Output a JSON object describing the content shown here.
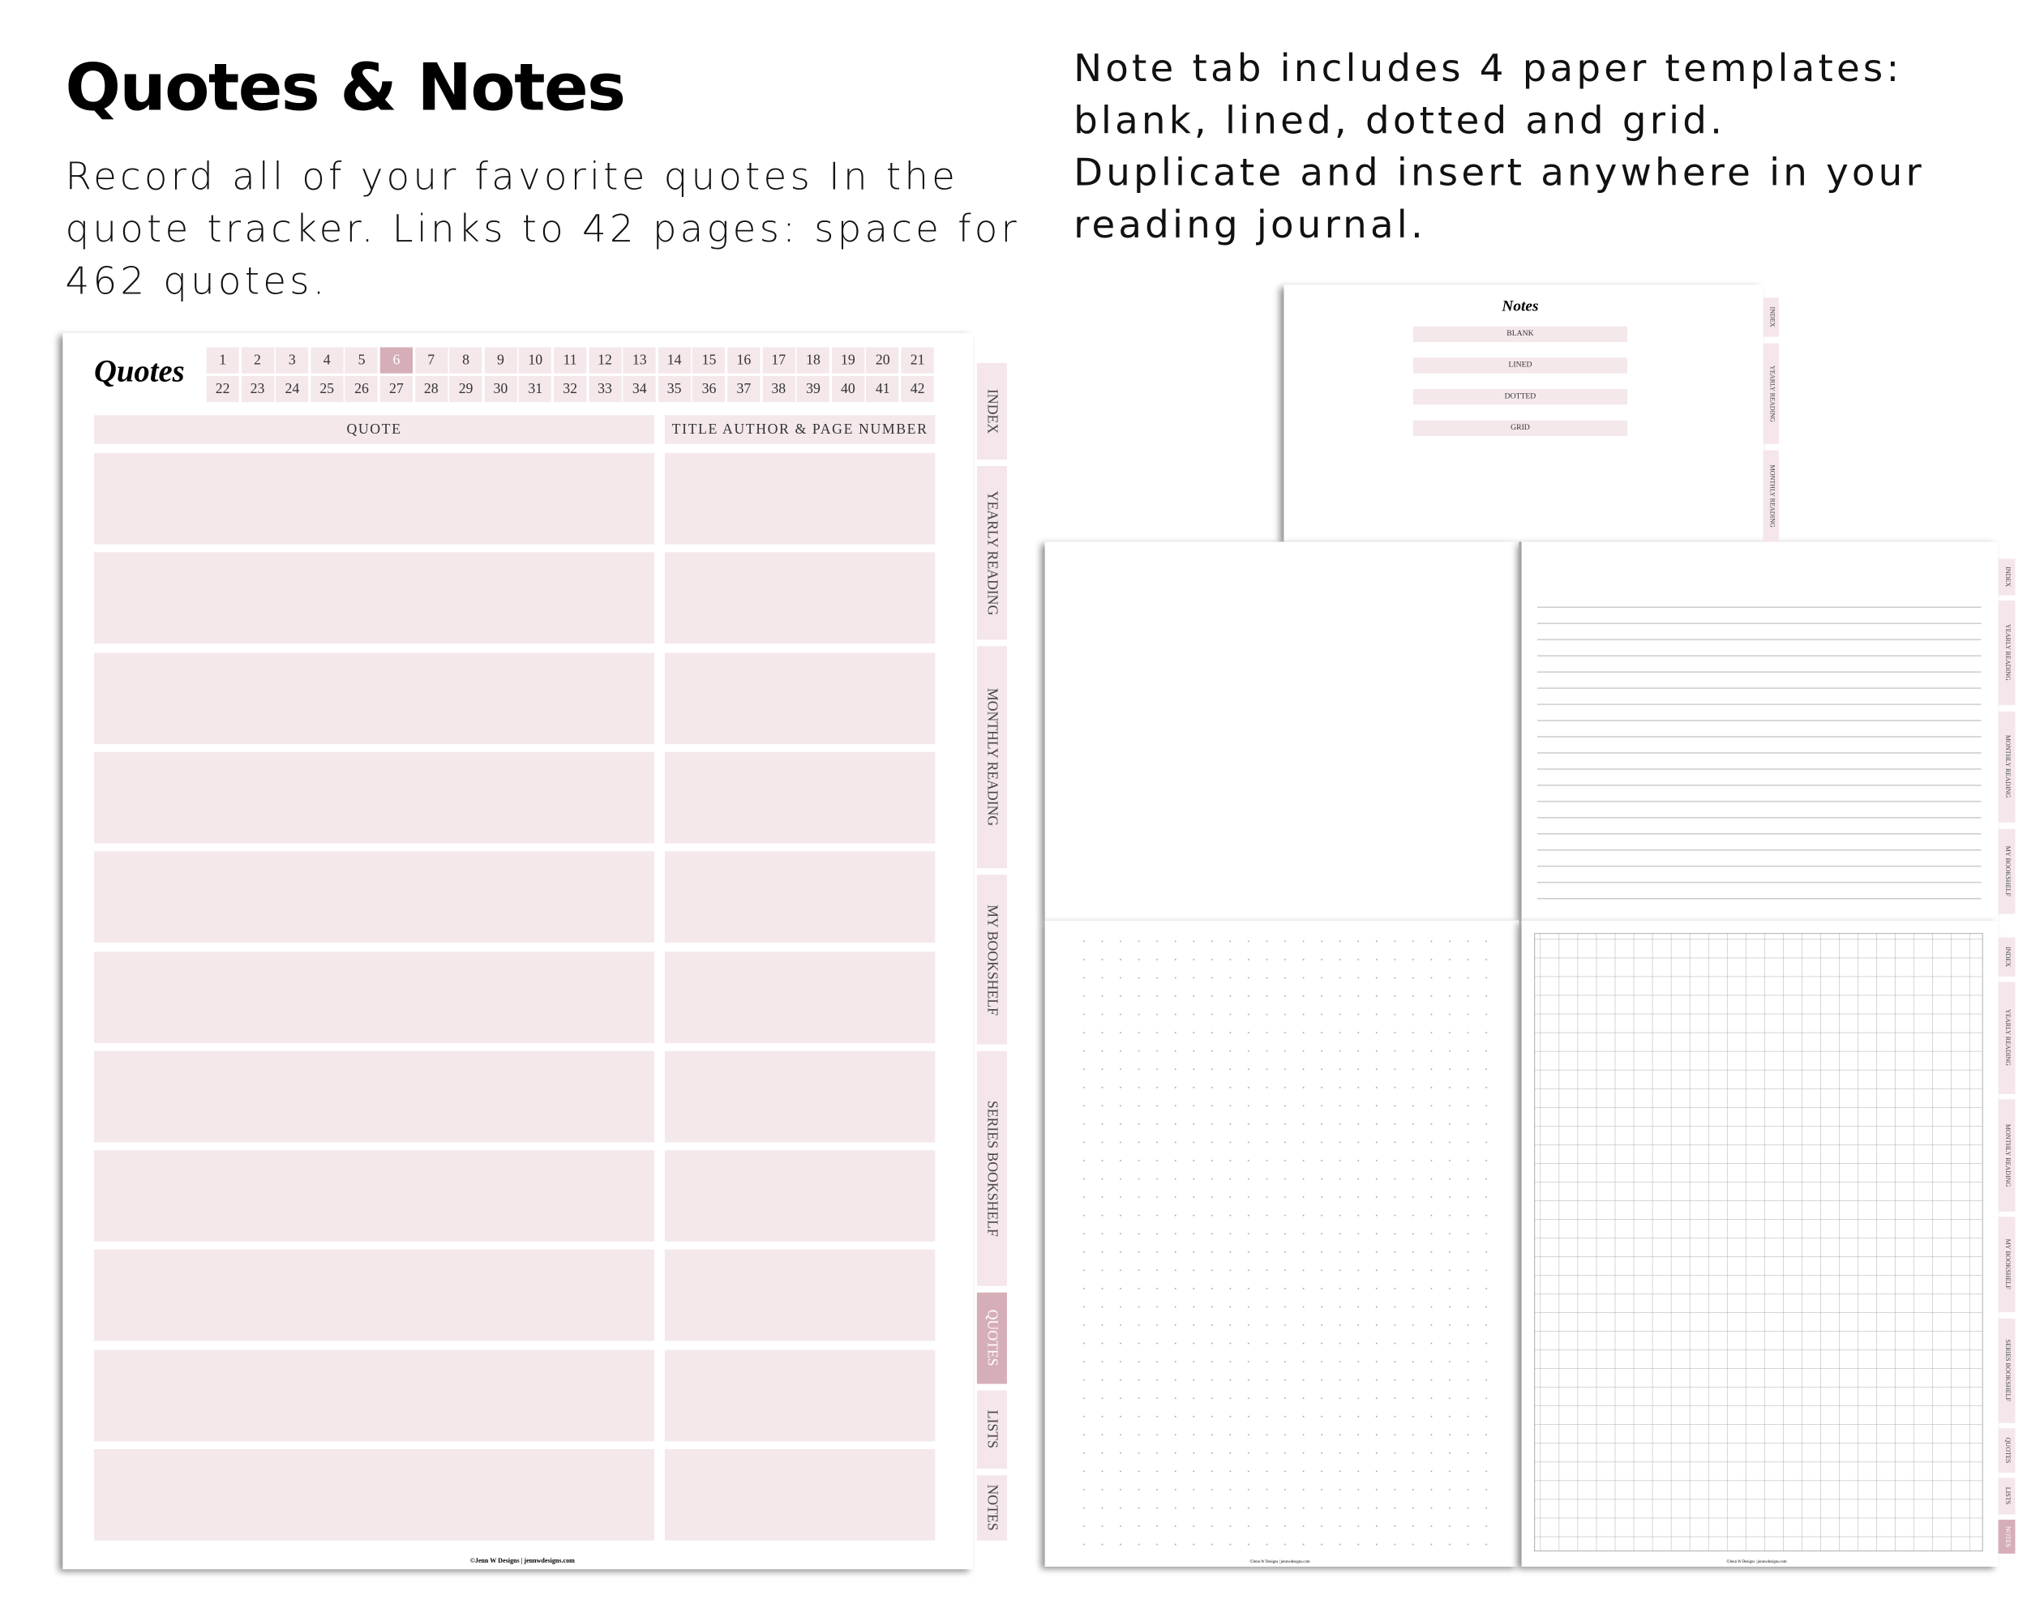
{
  "header": {
    "title": "Quotes & Notes",
    "description": "Record all of your favorite quotes In the quote tracker. Links to 42 pages: space for 462 quotes."
  },
  "notes_description": [
    "Note tab includes 4 paper templates: blank, lined, dotted and grid.",
    "Duplicate and insert anywhere in your reading journal."
  ],
  "quote_page": {
    "title": "Quotes",
    "page_numbers": [
      1,
      2,
      3,
      4,
      5,
      6,
      7,
      8,
      9,
      10,
      11,
      12,
      13,
      14,
      15,
      16,
      17,
      18,
      19,
      20,
      21,
      22,
      23,
      24,
      25,
      26,
      27,
      28,
      29,
      30,
      31,
      32,
      33,
      34,
      35,
      36,
      37,
      38,
      39,
      40,
      41,
      42
    ],
    "columns": [
      "QUOTE",
      "TITLE AUTHOR & PAGE NUMBER"
    ],
    "footer": "©Jenn W Designs | jennwdesigns.com"
  },
  "tabs": [
    "INDEX",
    "YEARLY READING",
    "MONTHLY READING",
    "MY BOOKSHELF",
    "SERIES BOOKSHELF",
    "QUOTES",
    "LISTS",
    "NOTES"
  ],
  "notes_page": {
    "title": "Notes",
    "templates": [
      "BLANK",
      "LINED",
      "DOTTED",
      "GRID"
    ]
  }
}
